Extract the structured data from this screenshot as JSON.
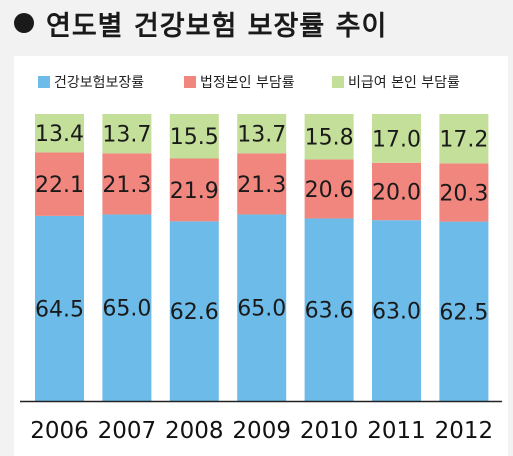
{
  "header": {
    "title": "연도별 건강보험 보장률 추이"
  },
  "colors": {
    "health_insurance": "#6cbbe8",
    "legal_copay": "#f0867e",
    "noncovered": "#c4df99"
  },
  "chart_data": {
    "type": "bar",
    "stacked": true,
    "title": "연도별 건강보험 보장률 추이",
    "xlabel": "",
    "ylabel": "",
    "ylim": [
      0,
      100
    ],
    "legend_position": "top",
    "categories": [
      "2006",
      "2007",
      "2008",
      "2009",
      "2010",
      "2011",
      "2012"
    ],
    "series": [
      {
        "name": "건강보험보장률",
        "color": "#6cbbe8",
        "values": [
          64.5,
          65.0,
          62.6,
          65.0,
          63.6,
          63.0,
          62.5
        ]
      },
      {
        "name": "법정본인 부담률",
        "color": "#f0867e",
        "values": [
          22.1,
          21.3,
          21.9,
          21.3,
          20.6,
          20.0,
          20.3
        ]
      },
      {
        "name": "비급여 본인 부담률",
        "color": "#c4df99",
        "values": [
          13.4,
          13.7,
          15.5,
          13.7,
          15.8,
          17.0,
          17.2
        ]
      }
    ],
    "value_labels": [
      [
        "64.5",
        "65.0",
        "62.6",
        "65.0",
        "63.6",
        "63.0",
        "62.5"
      ],
      [
        "22.1",
        "21.3",
        "21.9",
        "21.3",
        "20.6",
        "20.0",
        "20.3"
      ],
      [
        "13.4",
        "13.7",
        "15.5",
        "13.7",
        "15.8",
        "17.0",
        "17.2"
      ]
    ]
  }
}
